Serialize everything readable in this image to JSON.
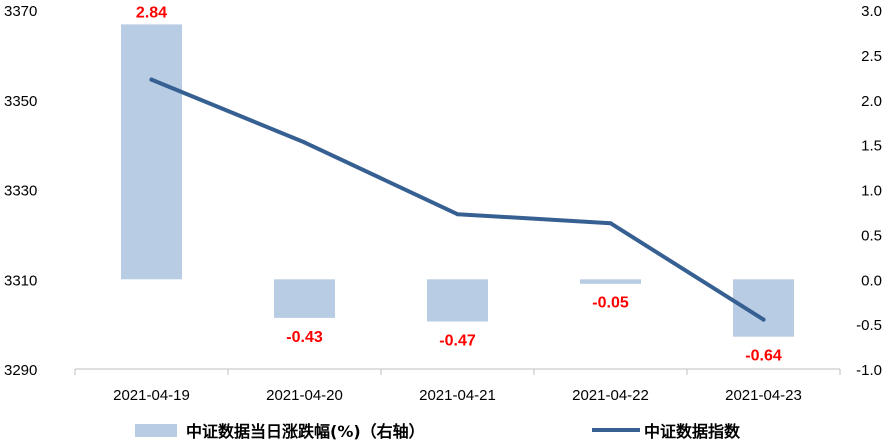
{
  "chart_data": {
    "type": "bar+line",
    "categories": [
      "2021-04-19",
      "2021-04-20",
      "2021-04-21",
      "2021-04-22",
      "2021-04-23"
    ],
    "series": [
      {
        "name": "中证数据当日涨跌幅(%)（右轴）",
        "type": "bar",
        "axis": "right",
        "values": [
          2.84,
          -0.43,
          -0.47,
          -0.05,
          -0.64
        ],
        "data_labels": [
          "2.84",
          "-0.43",
          "-0.47",
          "-0.05",
          "-0.64"
        ],
        "color": "#b8cce4"
      },
      {
        "name": "中证数据指数",
        "type": "line",
        "axis": "left",
        "values": [
          3354.5,
          3340.5,
          3324.5,
          3322.5,
          3301.0
        ],
        "color": "#376092"
      }
    ],
    "left_axis": {
      "min": 3290,
      "max": 3370,
      "ticks": [
        "3370",
        "3350",
        "3330",
        "3310",
        "3290"
      ]
    },
    "right_axis": {
      "min": -1.0,
      "max": 3.0,
      "ticks": [
        "3.0",
        "2.5",
        "2.0",
        "1.5",
        "1.0",
        "0.5",
        "0.0",
        "-0.5",
        "-1.0"
      ]
    },
    "grid": false,
    "legend_position": "bottom",
    "label_color": "#ff0000"
  }
}
